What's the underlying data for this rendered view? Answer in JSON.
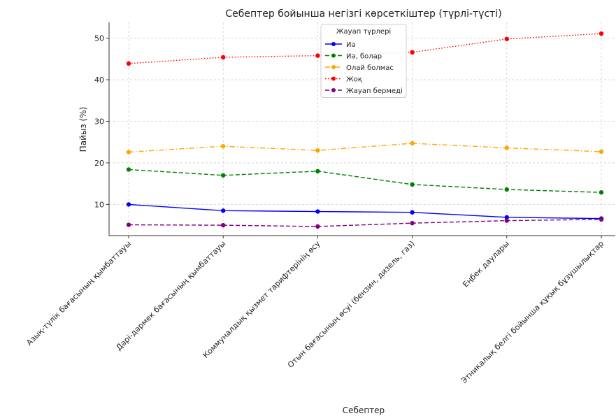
{
  "chart_data": {
    "type": "line",
    "title": "Себептер бойынша негізгі көрсеткіштер (түрлі-түсті)",
    "xlabel": "Себептер",
    "ylabel": "Пайыз (%)",
    "categories": [
      "Азық-түлік бағасының қымбаттауы",
      "Дәрі-дәрмек бағасының қымбаттауы",
      "Коммуналдық қызмет тарифтерінің өсу",
      "Отын бағасының өсуі (бензин, дизель, газ)",
      "Еңбек даулары",
      "Этникалық белгі бойынша құқық бұзушылықтар"
    ],
    "ylim": [
      2.5,
      53.8
    ],
    "yticks": [
      10,
      20,
      30,
      40,
      50
    ],
    "grid": true,
    "legend": {
      "title": "Жауап түрлері",
      "position": "top-center"
    },
    "series": [
      {
        "name": "Иә",
        "values": [
          10.0,
          8.5,
          8.3,
          8.1,
          6.9,
          6.6
        ],
        "color": "#0000ff",
        "style": "solid"
      },
      {
        "name": "Иә, болар",
        "values": [
          18.4,
          17.0,
          18.0,
          14.8,
          13.6,
          12.9
        ],
        "color": "#008000",
        "style": "dashed"
      },
      {
        "name": "Олай болмас",
        "values": [
          22.6,
          24.0,
          23.0,
          24.7,
          23.6,
          22.7
        ],
        "color": "#ffa500",
        "style": "dashdot"
      },
      {
        "name": "Жоқ",
        "values": [
          43.9,
          45.4,
          45.8,
          46.6,
          49.8,
          51.1
        ],
        "color": "#ff0000",
        "style": "dotted"
      },
      {
        "name": "Жауап бермеді",
        "values": [
          5.1,
          5.0,
          4.7,
          5.5,
          6.1,
          6.4
        ],
        "color": "#800080",
        "style": "dashed"
      }
    ]
  }
}
